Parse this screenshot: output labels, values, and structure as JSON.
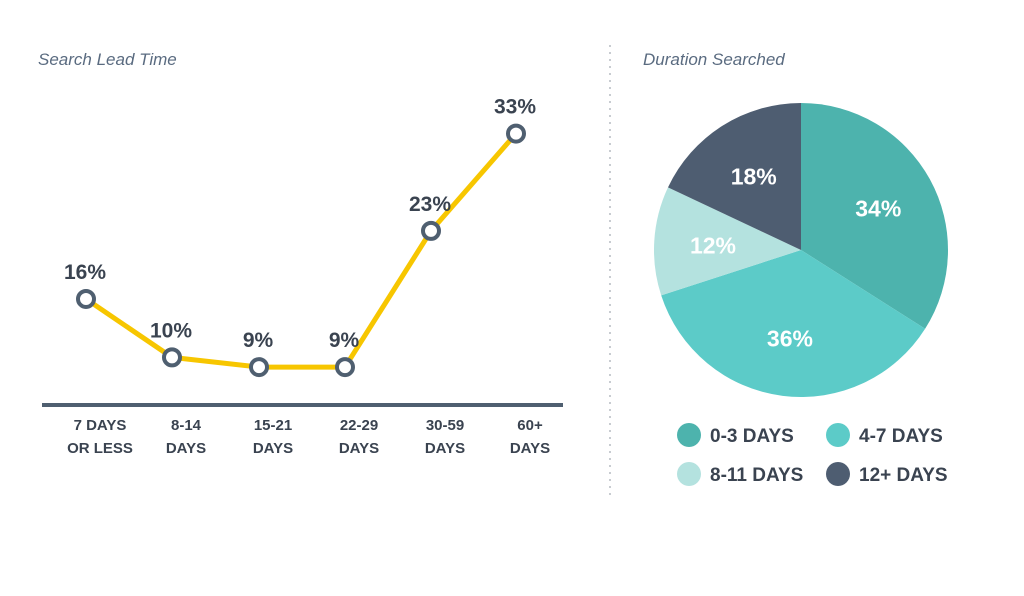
{
  "chart_data": [
    {
      "type": "line",
      "title": "Search Lead Time",
      "categories": [
        [
          "7 DAYS",
          "OR LESS"
        ],
        [
          "8-14",
          "DAYS"
        ],
        [
          "15-21",
          "DAYS"
        ],
        [
          "22-29",
          "DAYS"
        ],
        [
          "30-59",
          "DAYS"
        ],
        [
          "60+",
          "DAYS"
        ]
      ],
      "values": [
        16,
        10,
        9,
        9,
        23,
        33
      ],
      "value_labels": [
        "16%",
        "10%",
        "9%",
        "9%",
        "23%",
        "33%"
      ],
      "unit": "%",
      "ylim": [
        0,
        35
      ],
      "grid": false,
      "colors": {
        "line": "#f7c600",
        "marker_stroke": "#4f5f70",
        "marker_fill": "#ffffff",
        "axis": "#4f5f70"
      }
    },
    {
      "type": "pie",
      "title": "Duration Searched",
      "slices": [
        {
          "label": "0-3 DAYS",
          "value": 34,
          "value_label": "34%",
          "color": "#4db3ad"
        },
        {
          "label": "4-7 DAYS",
          "value": 36,
          "value_label": "36%",
          "color": "#5ccbc8"
        },
        {
          "label": "8-11 DAYS",
          "value": 12,
          "value_label": "12%",
          "color": "#b4e2df"
        },
        {
          "label": "12+ DAYS",
          "value": 18,
          "value_label": "18%",
          "color": "#4e5d71"
        }
      ],
      "start_angle": "top",
      "direction": "clockwise",
      "legend_placement": "bottom"
    }
  ]
}
